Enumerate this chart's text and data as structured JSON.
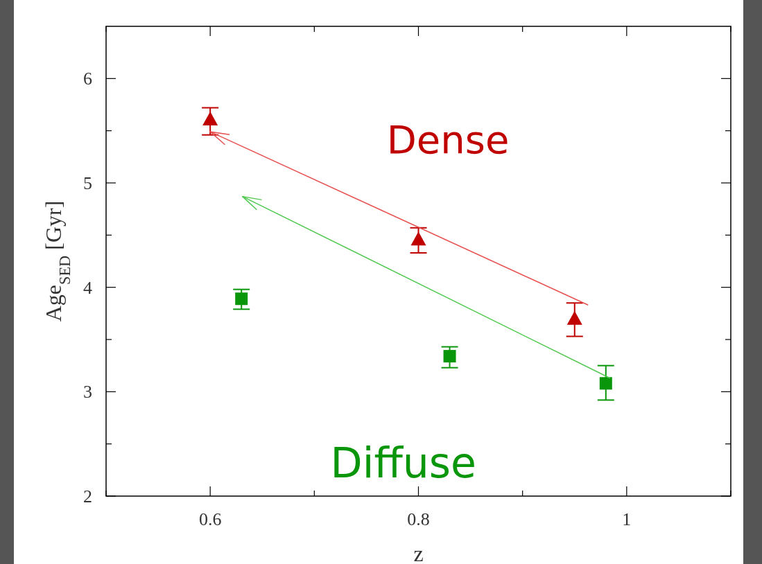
{
  "chart_data": {
    "type": "scatter",
    "xlabel": "z",
    "ylabel": "Age$_{SED}$ [Gyr]",
    "xlim": [
      0.5,
      1.1
    ],
    "ylim": [
      2,
      6.5
    ],
    "xticks": [
      {
        "value": 0.5,
        "label": null
      },
      0.6,
      {
        "value": 0.7,
        "label": null
      },
      0.8,
      {
        "value": 0.9,
        "label": null
      },
      1,
      {
        "value": 1.1,
        "label": null
      }
    ],
    "yticks": [
      2,
      {
        "value": 2.5,
        "label": null
      },
      3,
      {
        "value": 3.5,
        "label": null
      },
      4,
      {
        "value": 4.5,
        "label": null
      },
      5,
      {
        "value": 5.5,
        "label": null
      },
      6
    ],
    "grid": false,
    "series": [
      {
        "name": "Dense",
        "color": "#c00000",
        "marker": "triangle",
        "x": [
          0.6,
          0.8,
          0.95
        ],
        "values": [
          5.61,
          4.46,
          3.7
        ],
        "errors": [
          [
            5.46,
            5.72
          ],
          [
            4.33,
            4.57
          ],
          [
            3.53,
            3.85
          ]
        ]
      },
      {
        "name": "Diffuse",
        "color": "#0a960a",
        "marker": "square",
        "x": [
          0.63,
          0.83,
          0.98
        ],
        "values": [
          3.89,
          3.34,
          3.08
        ],
        "errors": [
          [
            3.79,
            3.98
          ],
          [
            3.23,
            3.43
          ],
          [
            2.92,
            3.25
          ]
        ]
      },
      {
        "type": "line",
        "color": "#e85050",
        "line_style": "solid",
        "x": [
          0.963,
          0.6
        ],
        "values": [
          3.83,
          5.49
        ]
      },
      {
        "type": "line",
        "color": "#50c850",
        "line_style": "solid",
        "x": [
          0.984,
          0.631
        ],
        "values": [
          3.13,
          4.87
        ]
      }
    ]
  }
}
